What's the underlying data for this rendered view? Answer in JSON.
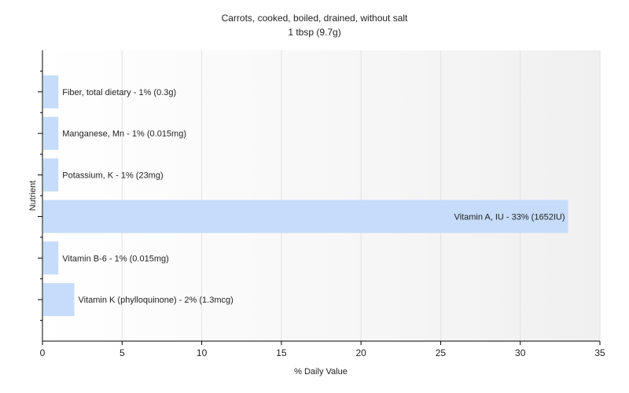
{
  "chart_data": {
    "type": "bar",
    "orientation": "horizontal",
    "title": "Carrots, cooked, boiled, drained, without salt",
    "subtitle": "1 tbsp (9.7g)",
    "xlabel": "% Daily Value",
    "ylabel": "Nutrient",
    "xlim": [
      0,
      35
    ],
    "xticks": [
      0,
      5,
      10,
      15,
      20,
      25,
      30,
      35
    ],
    "grid": true,
    "bar_color": "#c6dcfa",
    "categories": [
      "Fiber, total dietary",
      "Manganese, Mn",
      "Potassium, K",
      "Vitamin A, IU",
      "Vitamin B-6",
      "Vitamin K (phylloquinone)"
    ],
    "values": [
      1,
      1,
      1,
      33,
      1,
      2
    ],
    "labels": [
      "Fiber, total dietary - 1% (0.3g)",
      "Manganese, Mn - 1% (0.015mg)",
      "Potassium, K - 1% (23mg)",
      "Vitamin A, IU - 33% (1652IU)",
      "Vitamin B-6 - 1% (0.015mg)",
      "Vitamin K (phylloquinone) - 2% (1.3mcg)"
    ]
  }
}
